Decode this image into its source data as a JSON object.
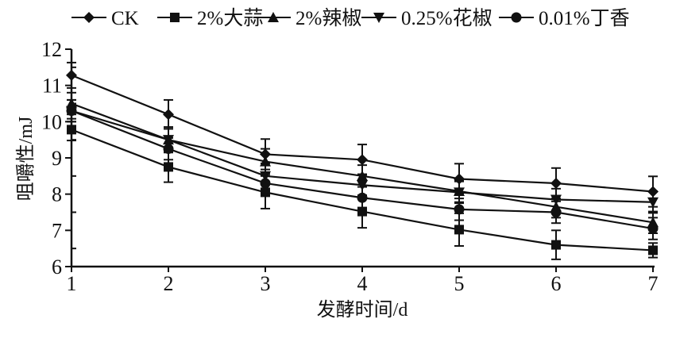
{
  "chart_data": {
    "type": "line",
    "xlabel": "发酵时间/d",
    "ylabel": "咀嚼性/mJ",
    "x": [
      1,
      2,
      3,
      4,
      5,
      6,
      7
    ],
    "xticks": [
      "1",
      "2",
      "3",
      "4",
      "5",
      "6",
      "7"
    ],
    "yticks": [
      "6",
      "7",
      "8",
      "9",
      "10",
      "11",
      "12"
    ],
    "xlim": [
      1,
      7
    ],
    "ylim": [
      6,
      12
    ],
    "grid": false,
    "legend_position": "top",
    "series": [
      {
        "name": "CK",
        "marker": "diamond",
        "values": [
          11.28,
          10.2,
          9.1,
          8.95,
          8.42,
          8.3,
          8.07
        ],
        "errors": [
          0.35,
          0.4,
          0.42,
          0.42,
          0.42,
          0.42,
          0.42
        ]
      },
      {
        "name": "2%大蒜",
        "marker": "square",
        "values": [
          9.78,
          8.75,
          8.05,
          7.52,
          7.02,
          6.6,
          6.45
        ],
        "errors": [
          0.3,
          0.42,
          0.45,
          0.45,
          0.45,
          0.4,
          0.2
        ]
      },
      {
        "name": "2%辣椒",
        "marker": "triangle-up",
        "values": [
          10.5,
          9.5,
          8.9,
          8.5,
          8.08,
          7.65,
          7.22
        ],
        "errors": [
          0.3,
          0.35,
          0.35,
          0.3,
          0.3,
          0.3,
          0.3
        ]
      },
      {
        "name": "0.25%花椒",
        "marker": "triangle-down",
        "values": [
          10.3,
          9.5,
          8.5,
          8.25,
          8.05,
          7.85,
          7.78
        ],
        "errors": [
          0.3,
          0.35,
          0.35,
          0.3,
          0.3,
          0.3,
          0.3
        ]
      },
      {
        "name": "0.01%丁香",
        "marker": "circle",
        "values": [
          10.3,
          9.25,
          8.3,
          7.9,
          7.58,
          7.5,
          7.05
        ],
        "errors": [
          0.3,
          0.3,
          0.3,
          0.3,
          0.3,
          0.3,
          0.3
        ]
      }
    ]
  }
}
